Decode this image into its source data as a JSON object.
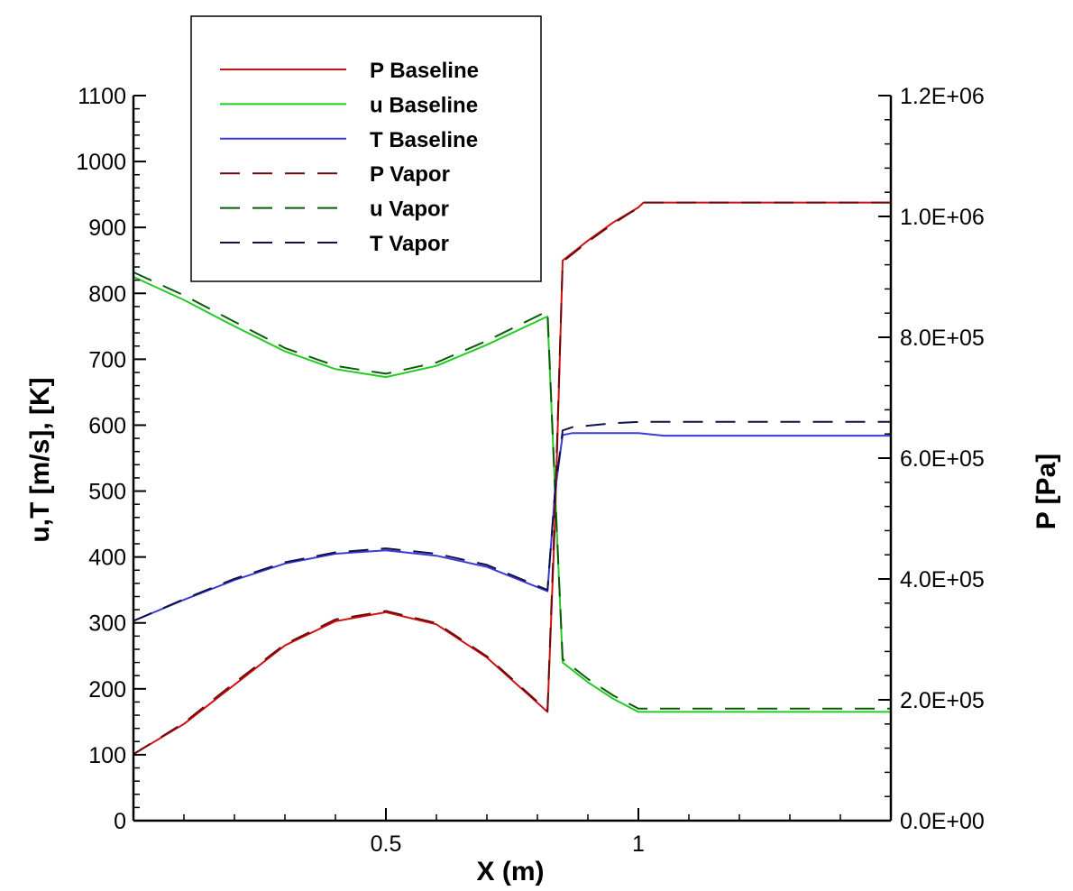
{
  "chart_data": {
    "type": "line",
    "xlabel": "X (m)",
    "ylabel_left": "u,T   [m/s], [K]",
    "ylabel_right": "P [Pa]",
    "xlim": [
      0,
      1.5
    ],
    "ylim_left": [
      0,
      1100
    ],
    "ylim_right": [
      0,
      1200000
    ],
    "x_ticks": [
      0.5,
      1
    ],
    "x_tick_labels": [
      "0.5",
      "1"
    ],
    "y_left_ticks": [
      0,
      100,
      200,
      300,
      400,
      500,
      600,
      700,
      800,
      900,
      1000,
      1100
    ],
    "y_left_tick_labels": [
      "0",
      "100",
      "200",
      "300",
      "400",
      "500",
      "600",
      "700",
      "800",
      "900",
      "1000",
      "1100"
    ],
    "y_right_ticks": [
      0,
      200000,
      400000,
      600000,
      800000,
      1000000,
      1200000
    ],
    "y_right_tick_labels": [
      "0.0E+00",
      "2.0E+05",
      "4.0E+05",
      "6.0E+05",
      "8.0E+05",
      "1.0E+06",
      "1.2E+06"
    ],
    "grid": false,
    "legend_position": "top-left",
    "series": [
      {
        "name": "P Baseline",
        "axis": "right",
        "color": "#d01010",
        "style": "solid",
        "x": [
          0,
          0.1,
          0.2,
          0.3,
          0.4,
          0.5,
          0.6,
          0.7,
          0.82,
          0.835,
          0.85,
          0.9,
          0.95,
          0.98,
          1.0,
          1.01,
          1.2,
          1.5
        ],
        "y": [
          110000,
          160000,
          225000,
          290000,
          330000,
          345000,
          325000,
          270000,
          180000,
          500000,
          927000,
          960000,
          990000,
          1005000,
          1015000,
          1023000,
          1023000,
          1023000
        ]
      },
      {
        "name": "u Baseline",
        "axis": "left",
        "color": "#22cc22",
        "style": "solid",
        "x": [
          0,
          0.1,
          0.2,
          0.3,
          0.4,
          0.5,
          0.6,
          0.7,
          0.82,
          0.835,
          0.85,
          0.9,
          0.95,
          1.0,
          1.5
        ],
        "y": [
          825,
          790,
          750,
          712,
          685,
          673,
          690,
          722,
          765,
          500,
          240,
          210,
          185,
          165,
          165
        ]
      },
      {
        "name": "T Baseline",
        "axis": "left",
        "color": "#3a3ad8",
        "style": "solid",
        "x": [
          0,
          0.1,
          0.2,
          0.3,
          0.4,
          0.5,
          0.6,
          0.7,
          0.82,
          0.835,
          0.85,
          0.87,
          0.95,
          1.0,
          1.05,
          1.5
        ],
        "y": [
          303,
          335,
          365,
          390,
          405,
          410,
          402,
          385,
          348,
          500,
          585,
          588,
          588,
          588,
          584,
          584
        ]
      },
      {
        "name": "P Vapor",
        "axis": "right",
        "color": "#6b0a0a",
        "style": "dashed",
        "x": [
          0,
          0.1,
          0.2,
          0.3,
          0.4,
          0.5,
          0.6,
          0.7,
          0.82,
          0.835,
          0.85,
          0.9,
          0.95,
          0.98,
          1.0,
          1.01,
          1.2,
          1.5
        ],
        "y": [
          110000,
          162000,
          228000,
          292000,
          333000,
          347000,
          327000,
          272000,
          182000,
          520000,
          925000,
          958000,
          988000,
          1004000,
          1014000,
          1023000,
          1023000,
          1023000
        ]
      },
      {
        "name": "u Vapor",
        "axis": "left",
        "color": "#0a5a0a",
        "style": "dashed",
        "x": [
          0,
          0.1,
          0.2,
          0.3,
          0.4,
          0.5,
          0.6,
          0.7,
          0.82,
          0.835,
          0.85,
          0.9,
          0.95,
          1.0,
          1.5
        ],
        "y": [
          832,
          797,
          757,
          717,
          690,
          678,
          695,
          728,
          773,
          500,
          245,
          215,
          190,
          170,
          170
        ]
      },
      {
        "name": "T Vapor",
        "axis": "left",
        "color": "#10104a",
        "style": "dashed",
        "x": [
          0,
          0.1,
          0.2,
          0.3,
          0.4,
          0.5,
          0.6,
          0.7,
          0.82,
          0.835,
          0.85,
          0.87,
          0.95,
          1.0,
          1.5
        ],
        "y": [
          303,
          336,
          367,
          392,
          407,
          413,
          405,
          388,
          350,
          500,
          592,
          597,
          603,
          605,
          605
        ]
      }
    ]
  }
}
